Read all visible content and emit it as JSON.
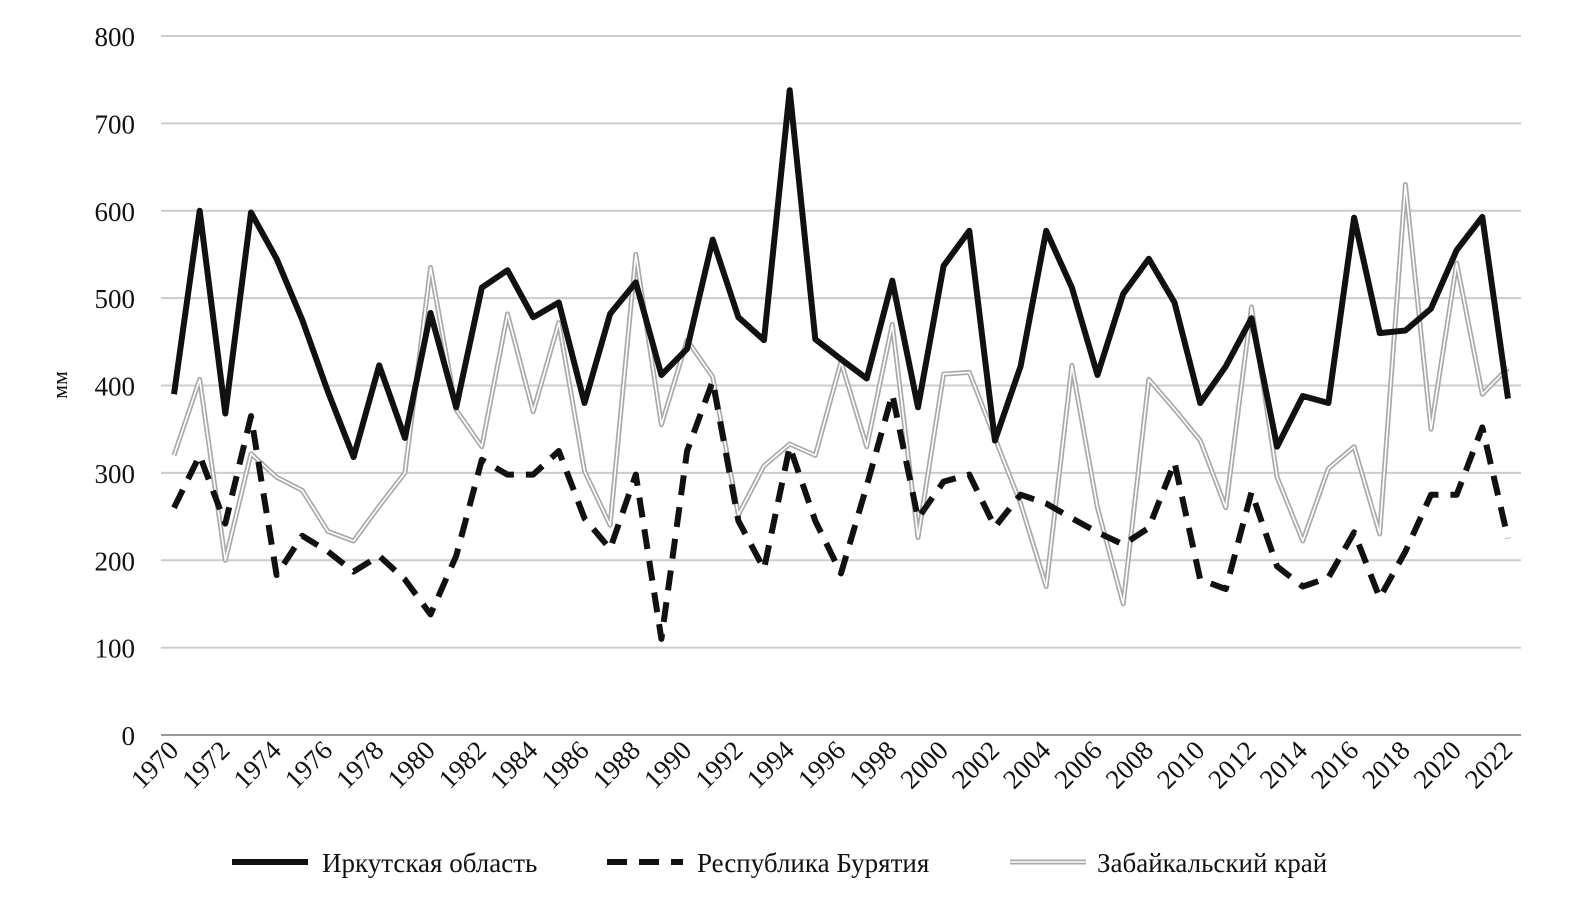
{
  "chart_data": {
    "type": "line",
    "title": "",
    "xlabel": "",
    "ylabel": "мм",
    "ylim": [
      0,
      800
    ],
    "yticks": [
      0,
      100,
      200,
      300,
      400,
      500,
      600,
      700,
      800
    ],
    "grid": true,
    "legend_position": "bottom",
    "x": [
      1970,
      1971,
      1972,
      1973,
      1974,
      1975,
      1976,
      1977,
      1978,
      1979,
      1980,
      1981,
      1982,
      1983,
      1984,
      1985,
      1986,
      1987,
      1988,
      1989,
      1990,
      1991,
      1992,
      1993,
      1994,
      1995,
      1996,
      1997,
      1998,
      1999,
      2000,
      2001,
      2002,
      2003,
      2004,
      2005,
      2006,
      2007,
      2008,
      2009,
      2010,
      2011,
      2012,
      2013,
      2014,
      2015,
      2016,
      2017,
      2018,
      2019,
      2020,
      2021,
      2022
    ],
    "xtick_labels": [
      "1970",
      "1972",
      "1974",
      "1976",
      "1978",
      "1980",
      "1982",
      "1984",
      "1986",
      "1988",
      "1990",
      "1992",
      "1994",
      "1996",
      "1998",
      "2000",
      "2002",
      "2004",
      "2006",
      "2008",
      "2010",
      "2012",
      "2014",
      "2016",
      "2018",
      "2020",
      "2022"
    ],
    "series": [
      {
        "name": "Иркутская область",
        "style": "solid-thick",
        "color": "#111111",
        "values": [
          390,
          600,
          368,
          598,
          545,
          475,
          393,
          318,
          423,
          340,
          483,
          375,
          512,
          532,
          478,
          495,
          380,
          482,
          518,
          412,
          442,
          567,
          478,
          452,
          738,
          453,
          430,
          408,
          520,
          375,
          537,
          577,
          337,
          422,
          577,
          512,
          412,
          505,
          545,
          495,
          380,
          422,
          477,
          330,
          388,
          380,
          592,
          460,
          463,
          488,
          555,
          593,
          385
        ]
      },
      {
        "name": "Республика Бурятия",
        "style": "dashed-thick",
        "color": "#111111",
        "values": [
          260,
          320,
          242,
          365,
          183,
          228,
          210,
          187,
          205,
          178,
          138,
          205,
          315,
          298,
          298,
          325,
          248,
          213,
          298,
          110,
          325,
          405,
          245,
          190,
          330,
          245,
          185,
          285,
          390,
          248,
          290,
          298,
          238,
          275,
          265,
          248,
          232,
          218,
          237,
          312,
          178,
          167,
          278,
          193,
          170,
          180,
          232,
          157,
          210,
          275,
          275,
          352,
          225
        ]
      },
      {
        "name": "Забайкальский край",
        "style": "double-line-gray",
        "color": "#aaaaaa",
        "values": [
          320,
          407,
          200,
          322,
          295,
          280,
          233,
          222,
          262,
          300,
          535,
          372,
          330,
          482,
          370,
          472,
          302,
          240,
          550,
          355,
          452,
          410,
          252,
          308,
          333,
          320,
          427,
          330,
          470,
          226,
          413,
          415,
          340,
          265,
          170,
          423,
          260,
          150,
          407,
          373,
          337,
          260,
          490,
          295,
          222,
          305,
          330,
          230,
          630,
          350,
          540,
          390,
          420
        ]
      }
    ]
  }
}
